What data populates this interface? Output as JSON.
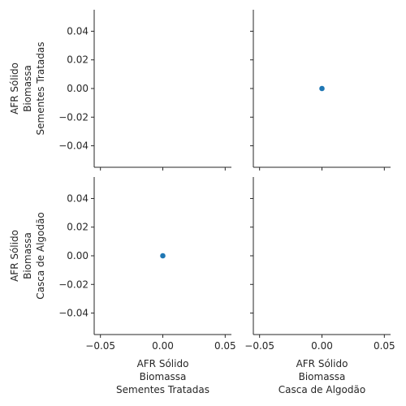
{
  "chart_data": {
    "type": "scatter",
    "layout": "pairplot-2x2",
    "variables": [
      [
        "AFR Sólido",
        "Biomassa",
        "Sementes Tratadas"
      ],
      [
        "AFR Sólido",
        "Biomassa",
        "Casca de Algodão"
      ]
    ],
    "xlim": [
      -0.055,
      0.055
    ],
    "ylim": [
      -0.055,
      0.055
    ],
    "x_ticks": [
      -0.05,
      0.0,
      0.05
    ],
    "x_tick_labels": [
      "−0.05",
      "0.00",
      "0.05"
    ],
    "y_ticks": [
      -0.04,
      -0.02,
      0.0,
      0.02,
      0.04
    ],
    "y_tick_labels": [
      "−0.04",
      "−0.02",
      "0.00",
      "0.02",
      "0.04"
    ],
    "marker_color": "#1f77b4",
    "panels": [
      {
        "row": 0,
        "col": 0,
        "points": []
      },
      {
        "row": 0,
        "col": 1,
        "points": [
          {
            "x": 0.0,
            "y": 0.0
          }
        ]
      },
      {
        "row": 1,
        "col": 0,
        "points": [
          {
            "x": 0.0,
            "y": 0.0
          }
        ]
      },
      {
        "row": 1,
        "col": 1,
        "points": []
      }
    ],
    "grid": false,
    "legend": "none"
  }
}
